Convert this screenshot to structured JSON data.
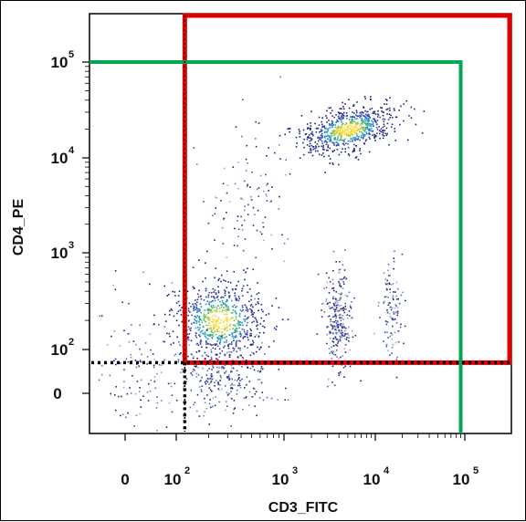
{
  "chart_data": {
    "type": "scatter",
    "xlabel": "CD3_FITC",
    "ylabel": "CD4_PE",
    "x_scale": "biexponential",
    "y_scale": "biexponential",
    "xlim": [
      -100,
      250000
    ],
    "ylim": [
      -100,
      250000
    ],
    "x_ticks": [
      {
        "value": 0,
        "base": "0",
        "exp": ""
      },
      {
        "value": 100,
        "base": "10",
        "exp": "2"
      },
      {
        "value": 1000,
        "base": "10",
        "exp": "3"
      },
      {
        "value": 10000,
        "base": "10",
        "exp": "4"
      },
      {
        "value": 100000,
        "base": "10",
        "exp": "5"
      }
    ],
    "y_ticks": [
      {
        "value": 0,
        "base": "0",
        "exp": ""
      },
      {
        "value": 100,
        "base": "10",
        "exp": "2"
      },
      {
        "value": 1000,
        "base": "10",
        "exp": "3"
      },
      {
        "value": 10000,
        "base": "10",
        "exp": "4"
      },
      {
        "value": 100000,
        "base": "10",
        "exp": "5"
      }
    ],
    "populations": [
      {
        "x_center": 5000,
        "y_center": 20000,
        "spread": "dense",
        "density": "high"
      },
      {
        "x_center": 250,
        "y_center": 200,
        "spread": "broad",
        "density": "high"
      },
      {
        "x_center": 250,
        "y_center": 40,
        "spread": "broad",
        "density": "medium"
      },
      {
        "x_center": 3800,
        "y_center": 200,
        "spread": "vertical",
        "density": "medium"
      },
      {
        "x_center": 15000,
        "y_center": 250,
        "spread": "vertical",
        "density": "low"
      },
      {
        "x_center": 450,
        "y_center": 3500,
        "spread": "sparse",
        "density": "low"
      },
      {
        "x_center": 20,
        "y_center": 60,
        "spread": "sparse",
        "density": "low"
      }
    ],
    "gates": [
      {
        "name": "",
        "color": "#e00000",
        "x_range": [
          120,
          250000
        ],
        "y_range": [
          70,
          250000
        ]
      },
      {
        "name": "",
        "color": "#00a651",
        "x_range": [
          -100,
          90000
        ],
        "y_range": [
          -100,
          100000
        ]
      },
      {
        "name": "",
        "color": "#000000",
        "style": "dotted",
        "x_threshold": 120,
        "y_threshold": 70
      }
    ],
    "grid": false,
    "legend": "none"
  }
}
